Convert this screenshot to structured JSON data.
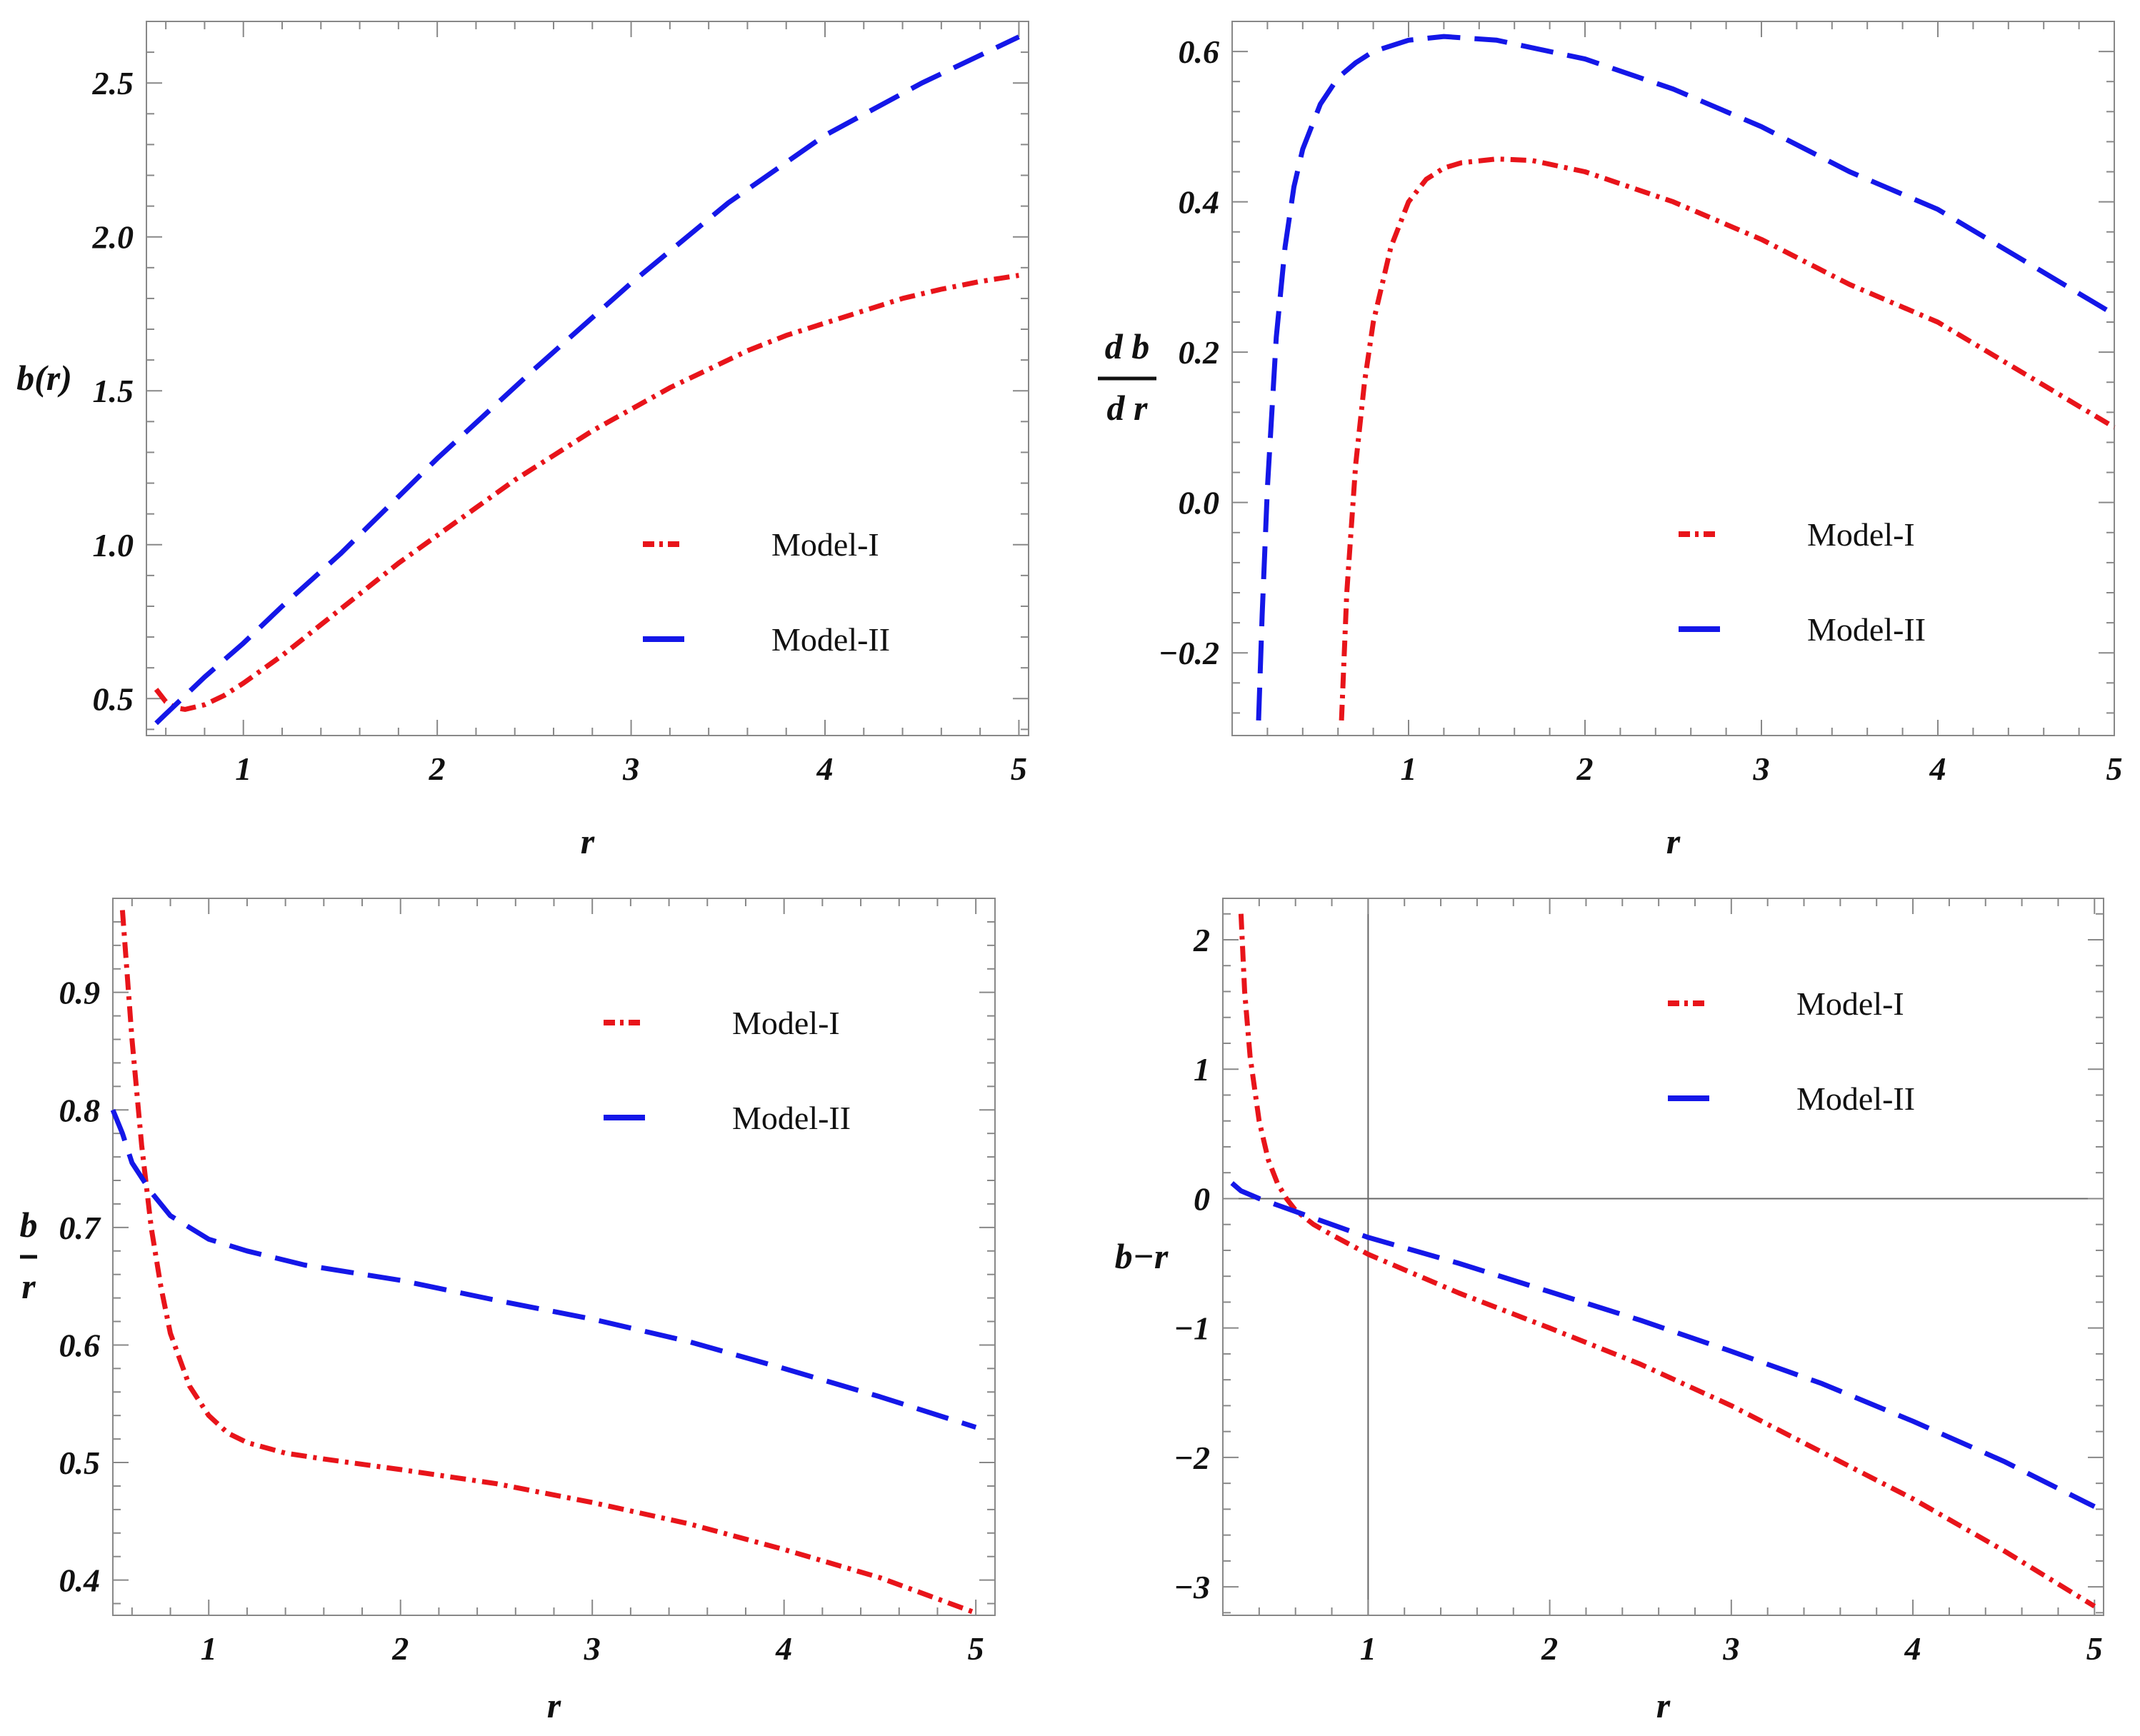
{
  "chart_data": [
    {
      "type": "line",
      "xlabel": "r",
      "ylabel": "b(r)",
      "ylabel_parts": [
        "b(r)"
      ],
      "xlim": [
        0.5,
        5.05
      ],
      "ylim": [
        0.38,
        2.7
      ],
      "xticks": [
        1,
        2,
        3,
        4,
        5
      ],
      "xtick_labels": [
        "1",
        "2",
        "3",
        "4",
        "5"
      ],
      "yticks": [
        0.5,
        1.0,
        1.5,
        2.0,
        2.5
      ],
      "ytick_labels": [
        "0.5",
        "1.0",
        "1.5",
        "2.0",
        "2.5"
      ],
      "legend_placement": "lower-right",
      "legend_order": [
        0,
        1
      ],
      "legend": [
        "Model-I",
        "Model-II"
      ],
      "grid": false,
      "series": [
        {
          "name": "Model-I",
          "color": "#e8141a",
          "style": "dashdot",
          "x": [
            0.55,
            0.6,
            0.65,
            0.7,
            0.8,
            0.9,
            1.0,
            1.2,
            1.4,
            1.6,
            1.8,
            2.0,
            2.2,
            2.4,
            2.6,
            2.8,
            3.0,
            3.2,
            3.4,
            3.6,
            3.8,
            4.0,
            4.2,
            4.4,
            4.6,
            4.8,
            5.0
          ],
          "y": [
            0.53,
            0.49,
            0.47,
            0.465,
            0.48,
            0.51,
            0.55,
            0.64,
            0.74,
            0.84,
            0.94,
            1.03,
            1.12,
            1.21,
            1.29,
            1.37,
            1.44,
            1.51,
            1.57,
            1.63,
            1.68,
            1.72,
            1.76,
            1.8,
            1.83,
            1.855,
            1.875
          ]
        },
        {
          "name": "Model-II",
          "color": "#1417e8",
          "style": "dashed",
          "x": [
            0.55,
            0.6,
            0.7,
            0.8,
            1.0,
            1.2,
            1.5,
            2.0,
            2.5,
            3.0,
            3.5,
            4.0,
            4.5,
            5.0
          ],
          "y": [
            0.42,
            0.45,
            0.51,
            0.57,
            0.68,
            0.8,
            0.97,
            1.28,
            1.57,
            1.85,
            2.11,
            2.33,
            2.5,
            2.65
          ]
        }
      ]
    },
    {
      "type": "line",
      "xlabel": "r",
      "ylabel": "d b / d r",
      "ylabel_parts": [
        "d b",
        "d r"
      ],
      "xlim": [
        0.0,
        5.0
      ],
      "ylim": [
        -0.31,
        0.64
      ],
      "xticks": [
        1,
        2,
        3,
        4,
        5
      ],
      "xtick_labels": [
        "1",
        "2",
        "3",
        "4",
        "5"
      ],
      "yticks": [
        -0.2,
        0.0,
        0.2,
        0.4,
        0.6
      ],
      "ytick_labels": [
        "−0.2",
        "0.0",
        "0.2",
        "0.4",
        "0.6"
      ],
      "legend_placement": "lower-right",
      "legend_order": [
        0,
        1
      ],
      "legend": [
        "Model-I",
        "Model-II"
      ],
      "grid": false,
      "series": [
        {
          "name": "Model-I",
          "color": "#e8141a",
          "style": "dashdot",
          "x": [
            0.62,
            0.65,
            0.7,
            0.75,
            0.8,
            0.9,
            1.0,
            1.1,
            1.2,
            1.3,
            1.5,
            1.7,
            2.0,
            2.5,
            3.0,
            3.5,
            4.0,
            4.5,
            5.0
          ],
          "y": [
            -0.29,
            -0.12,
            0.05,
            0.16,
            0.24,
            0.34,
            0.4,
            0.43,
            0.445,
            0.452,
            0.457,
            0.455,
            0.44,
            0.4,
            0.35,
            0.29,
            0.24,
            0.17,
            0.1
          ]
        },
        {
          "name": "Model-II",
          "color": "#1417e8",
          "style": "dashed",
          "x": [
            0.15,
            0.17,
            0.2,
            0.25,
            0.3,
            0.35,
            0.4,
            0.5,
            0.6,
            0.7,
            0.8,
            1.0,
            1.2,
            1.5,
            2.0,
            2.5,
            3.0,
            3.5,
            4.0,
            4.5,
            5.0
          ],
          "y": [
            -0.29,
            -0.15,
            0.02,
            0.22,
            0.34,
            0.42,
            0.47,
            0.53,
            0.565,
            0.585,
            0.6,
            0.615,
            0.62,
            0.615,
            0.59,
            0.55,
            0.5,
            0.44,
            0.39,
            0.32,
            0.25
          ]
        }
      ]
    },
    {
      "type": "line",
      "xlabel": "r",
      "ylabel": "b / r",
      "ylabel_parts": [
        "b",
        "r"
      ],
      "xlim": [
        0.5,
        5.1
      ],
      "ylim": [
        0.37,
        0.98
      ],
      "xticks": [
        1,
        2,
        3,
        4,
        5
      ],
      "xtick_labels": [
        "1",
        "2",
        "3",
        "4",
        "5"
      ],
      "yticks": [
        0.4,
        0.5,
        0.6,
        0.7,
        0.8,
        0.9
      ],
      "ytick_labels": [
        "0.4",
        "0.5",
        "0.6",
        "0.7",
        "0.8",
        "0.9"
      ],
      "legend_placement": "top-right",
      "legend_order": [
        0,
        1
      ],
      "legend": [
        "Model-I",
        "Model-II"
      ],
      "grid": false,
      "series": [
        {
          "name": "Model-I",
          "color": "#e8141a",
          "style": "dashdot",
          "x": [
            0.55,
            0.6,
            0.65,
            0.7,
            0.75,
            0.8,
            0.9,
            1.0,
            1.1,
            1.2,
            1.4,
            1.6,
            2.0,
            2.5,
            3.0,
            3.5,
            4.0,
            4.5,
            5.0
          ],
          "y": [
            0.97,
            0.86,
            0.77,
            0.7,
            0.65,
            0.61,
            0.565,
            0.54,
            0.525,
            0.517,
            0.508,
            0.503,
            0.494,
            0.482,
            0.466,
            0.448,
            0.426,
            0.402,
            0.372
          ]
        },
        {
          "name": "Model-II",
          "color": "#1417e8",
          "style": "dashed",
          "x": [
            0.5,
            0.55,
            0.6,
            0.7,
            0.8,
            1.0,
            1.2,
            1.5,
            2.0,
            2.5,
            3.0,
            3.5,
            4.0,
            4.5,
            5.0
          ],
          "y": [
            0.8,
            0.78,
            0.755,
            0.73,
            0.71,
            0.69,
            0.68,
            0.668,
            0.655,
            0.638,
            0.622,
            0.603,
            0.58,
            0.556,
            0.53
          ]
        }
      ]
    },
    {
      "type": "line",
      "xlabel": "r",
      "ylabel": "b−r",
      "ylabel_parts": [
        "b−r"
      ],
      "xlim": [
        0.2,
        5.05
      ],
      "ylim": [
        -3.22,
        2.32
      ],
      "xticks": [
        1,
        2,
        3,
        4,
        5
      ],
      "xtick_labels": [
        "1",
        "2",
        "3",
        "4",
        "5"
      ],
      "yticks": [
        -3,
        -2,
        -1,
        0,
        1,
        2
      ],
      "ytick_labels": [
        "−3",
        "−2",
        "−1",
        "0",
        "1",
        "2"
      ],
      "axis_lines": {
        "x": 0,
        "y": 1
      },
      "legend_placement": "top-right",
      "legend_order": [
        0,
        1
      ],
      "legend": [
        "Model-I",
        "Model-II"
      ],
      "grid": false,
      "series": [
        {
          "name": "Model-I",
          "color": "#e8141a",
          "style": "dashdot",
          "x": [
            0.3,
            0.32,
            0.35,
            0.4,
            0.45,
            0.5,
            0.55,
            0.6,
            0.7,
            0.8,
            1.0,
            1.5,
            2.0,
            2.5,
            3.0,
            3.5,
            4.0,
            4.5,
            5.0
          ],
          "y": [
            2.2,
            1.6,
            1.1,
            0.6,
            0.3,
            0.12,
            0.0,
            -0.09,
            -0.2,
            -0.28,
            -0.43,
            -0.73,
            -1.0,
            -1.28,
            -1.6,
            -1.96,
            -2.32,
            -2.72,
            -3.15
          ]
        },
        {
          "name": "Model-II",
          "color": "#1417e8",
          "style": "dashed",
          "x": [
            0.25,
            0.3,
            0.4,
            0.5,
            0.6,
            0.8,
            1.0,
            1.5,
            2.0,
            2.5,
            3.0,
            3.5,
            4.0,
            4.5,
            5.0
          ],
          "y": [
            0.12,
            0.06,
            0.0,
            -0.05,
            -0.1,
            -0.2,
            -0.3,
            -0.5,
            -0.72,
            -0.94,
            -1.18,
            -1.43,
            -1.72,
            -2.03,
            -2.38
          ]
        }
      ]
    }
  ]
}
